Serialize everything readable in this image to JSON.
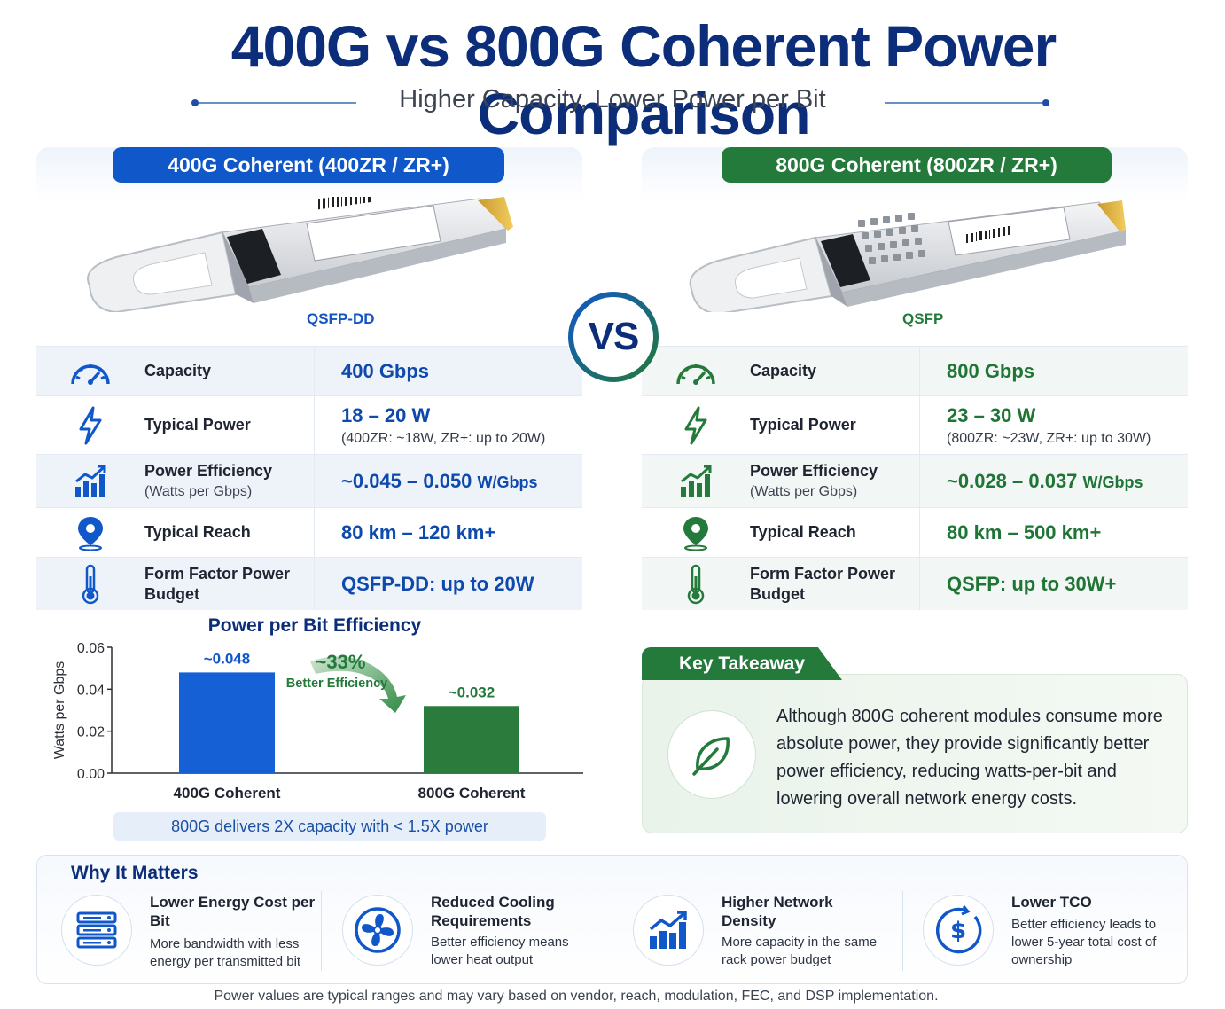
{
  "header": {
    "title": "400G vs 800G Coherent Power Comparison",
    "subtitle": "Higher Capacity, Lower Power per Bit"
  },
  "vs_label": "VS",
  "left": {
    "heading": "400G Coherent (400ZR / ZR+)",
    "form_factor": "QSFP-DD",
    "rows": [
      {
        "label": "Capacity",
        "value": "400 Gbps",
        "icon": "speedometer-icon"
      },
      {
        "label": "Typical Power",
        "value": "18 – 20 W",
        "note": "(400ZR: ~18W, ZR+: up to 20W)",
        "icon": "lightning-icon"
      },
      {
        "label": "Power Efficiency",
        "sub": "(Watts per Gbps)",
        "value": "~0.045 – 0.050",
        "unit": "W/Gbps",
        "icon": "bar-chart-icon"
      },
      {
        "label": "Typical Reach",
        "value": "80 km – 120 km+",
        "icon": "location-pin-icon"
      },
      {
        "label": "Form Factor Power",
        "label2": "Budget",
        "value": "QSFP-DD: up to 20W",
        "icon": "thermometer-icon"
      }
    ]
  },
  "right": {
    "heading": "800G Coherent (800ZR / ZR+)",
    "form_factor": "QSFP",
    "rows": [
      {
        "label": "Capacity",
        "value": "800 Gbps",
        "icon": "speedometer-icon"
      },
      {
        "label": "Typical Power",
        "value": "23 – 30 W",
        "note": "(800ZR: ~23W, ZR+: up to 30W)",
        "icon": "lightning-icon"
      },
      {
        "label": "Power Efficiency",
        "sub": "(Watts per Gbps)",
        "value": "~0.028 – 0.037",
        "unit": "W/Gbps",
        "icon": "bar-chart-icon"
      },
      {
        "label": "Typical Reach",
        "value": "80 km – 500 km+",
        "icon": "location-pin-icon"
      },
      {
        "label": "Form Factor Power",
        "label2": "Budget",
        "value": "QSFP: up to 30W+",
        "icon": "thermometer-icon"
      }
    ]
  },
  "chart_data": {
    "type": "bar",
    "title": "Power per Bit Efficiency",
    "ylabel": "Watts per Gbps",
    "categories": [
      "400G Coherent",
      "800G Coherent"
    ],
    "values": [
      0.048,
      0.032
    ],
    "data_labels": [
      "~0.048",
      "~0.032"
    ],
    "ylim": [
      0,
      0.06
    ],
    "yticks": [
      "0.00",
      "0.02",
      "0.04",
      "0.06"
    ],
    "ytick_values": [
      0,
      0.02,
      0.04,
      0.06
    ],
    "bar_colors": [
      "#1560d4",
      "#2a7b3c"
    ],
    "annotation": {
      "value": "~33%",
      "text": "Better Efficiency"
    },
    "note": "800G delivers 2X capacity with < 1.5X power"
  },
  "takeaway": {
    "title": "Key Takeaway",
    "text": "Although 800G coherent modules consume more absolute power, they provide significantly better power efficiency, reducing watts-per-bit and lowering overall network energy costs."
  },
  "why": {
    "title": "Why It Matters",
    "items": [
      {
        "title": "Lower Energy Cost per Bit",
        "desc": "More bandwidth with less energy per transmitted bit",
        "icon": "server-icon"
      },
      {
        "title": "Reduced Cooling Requirements",
        "desc": "Better efficiency means lower heat output",
        "icon": "fan-icon"
      },
      {
        "title": "Higher Network Density",
        "desc": "More capacity in the same rack power budget",
        "icon": "growth-chart-icon"
      },
      {
        "title": "Lower TCO",
        "desc": "Better efficiency leads to lower 5-year total cost of ownership",
        "icon": "dollar-icon"
      }
    ]
  },
  "footer": "Power values are typical ranges and may vary based on vendor, reach, modulation, FEC, and DSP implementation.",
  "colors": {
    "blue": "#1057c9",
    "navy": "#0b2d7a",
    "green": "#237a3a"
  }
}
